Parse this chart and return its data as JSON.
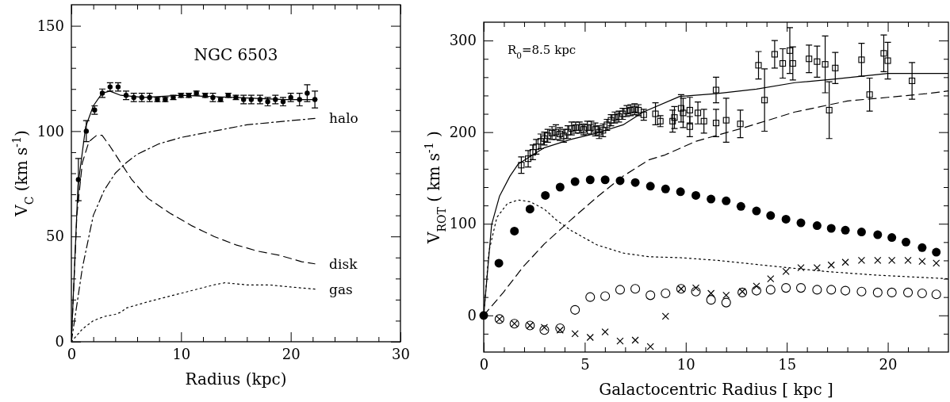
{
  "chart_data": [
    {
      "type": "line",
      "title": "NGC 6503",
      "xlabel": "Radius (kpc)",
      "ylabel": "V$_{C}$ (km s$^{-1}$)",
      "xlim": [
        0,
        30
      ],
      "ylim": [
        0,
        160
      ],
      "xticks": [
        0,
        {
          "value": 2,
          "label": null
        },
        {
          "value": 4,
          "label": null
        },
        {
          "value": 6,
          "label": null
        },
        {
          "value": 8,
          "label": null
        },
        10,
        {
          "value": 12,
          "label": null
        },
        {
          "value": 14,
          "label": null
        },
        {
          "value": 16,
          "label": null
        },
        {
          "value": 18,
          "label": null
        },
        20,
        {
          "value": 22,
          "label": null
        },
        {
          "value": 24,
          "label": null
        },
        {
          "value": 26,
          "label": null
        },
        {
          "value": 28,
          "label": null
        },
        30
      ],
      "yticks": [
        0,
        {
          "value": 10,
          "label": null
        },
        {
          "value": 20,
          "label": null
        },
        {
          "value": 30,
          "label": null
        },
        {
          "value": 40,
          "label": null
        },
        50,
        {
          "value": 60,
          "label": null
        },
        {
          "value": 70,
          "label": null
        },
        {
          "value": 80,
          "label": null
        },
        {
          "value": 90,
          "label": null
        },
        100,
        {
          "value": 110,
          "label": null
        },
        {
          "value": 120,
          "label": null
        },
        {
          "value": 130,
          "label": null
        },
        {
          "value": 140,
          "label": null
        },
        150
      ],
      "grid": false,
      "legend": false,
      "series": [
        {
          "type": "line",
          "color": "#000000",
          "line_style": "solid",
          "x": [
            0,
            0.6,
            1.3,
            2,
            2.8,
            3.5,
            4.5,
            6.6,
            10,
            14.8,
            19.5,
            22.4
          ],
          "values": [
            0,
            74,
            102,
            112,
            118,
            119,
            117,
            116,
            117,
            116,
            115,
            115
          ]
        },
        {
          "type": "line",
          "name": "halo",
          "color": "#000000",
          "line_style": "dashdot",
          "x": [
            0,
            1,
            2,
            3,
            4,
            5,
            6,
            8,
            10,
            12,
            14,
            16,
            18,
            20,
            22.2
          ],
          "values": [
            0,
            35,
            60,
            72,
            80,
            85,
            89,
            94,
            97,
            99,
            101,
            103,
            104,
            105,
            106
          ]
        },
        {
          "type": "line",
          "name": "disk",
          "color": "#000000",
          "line_style": "dashed",
          "x": [
            0,
            0.5,
            1,
            1.6,
            2.3,
            2.8,
            3.5,
            4.5,
            5.5,
            7,
            9,
            11,
            13,
            15,
            17,
            19,
            21,
            22.2
          ],
          "values": [
            0,
            60,
            85,
            95,
            98,
            98,
            93,
            85,
            77,
            68,
            61,
            55,
            50,
            46,
            43,
            41,
            38,
            37
          ]
        },
        {
          "type": "line",
          "name": "gas",
          "color": "#000000",
          "line_style": "dotted",
          "x": [
            0,
            1,
            2,
            3,
            4,
            4.5,
            5,
            7,
            10,
            13,
            14,
            16,
            18,
            20,
            22.2
          ],
          "values": [
            0,
            6,
            10,
            12,
            13,
            14,
            16,
            19,
            23,
            27,
            28,
            27,
            27,
            26,
            25
          ]
        },
        {
          "type": "scatter",
          "color": "#000000",
          "marker": "circle",
          "x": [
            0.64,
            1.36,
            2.12,
            2.82,
            3.53,
            4.26,
            4.99,
            5.69,
            6.42,
            7.13,
            7.84,
            8.56,
            9.29,
            10,
            10.7,
            11.4,
            12.2,
            12.9,
            13.6,
            14.3,
            15,
            15.7,
            16.4,
            17.2,
            17.9,
            18.6,
            19.3,
            20,
            20.8,
            21.5,
            22.2
          ],
          "values": [
            77,
            100,
            110,
            118,
            121,
            121,
            117,
            116,
            116,
            116,
            115,
            115,
            116,
            117,
            117,
            118,
            117,
            116,
            115,
            117,
            116,
            115,
            115,
            115,
            114,
            115,
            114,
            116,
            115,
            118,
            115
          ],
          "errors": [
            10,
            5,
            2,
            2,
            2,
            2,
            2,
            2,
            2,
            2,
            1,
            1,
            1,
            1,
            1,
            1,
            1,
            2,
            1,
            1,
            1,
            2,
            2,
            2,
            2,
            2,
            2,
            2,
            3,
            4,
            4
          ]
        }
      ]
    },
    {
      "type": "line",
      "xlabel": "Galactocentric Radius [ kpc ]",
      "ylabel": "V$_{ROT}$ ( km s$^{-1}$ )",
      "annotations": [
        "R$_{0}$=8.5 kpc"
      ],
      "xlim": [
        0,
        23
      ],
      "ylim": [
        -40,
        320
      ],
      "xticks": [
        0,
        {
          "value": 1,
          "label": null
        },
        {
          "value": 2,
          "label": null
        },
        {
          "value": 3,
          "label": null
        },
        {
          "value": 4,
          "label": null
        },
        5,
        {
          "value": 6,
          "label": null
        },
        {
          "value": 7,
          "label": null
        },
        {
          "value": 8,
          "label": null
        },
        {
          "value": 9,
          "label": null
        },
        10,
        {
          "value": 11,
          "label": null
        },
        {
          "value": 12,
          "label": null
        },
        {
          "value": 13,
          "label": null
        },
        {
          "value": 14,
          "label": null
        },
        15,
        {
          "value": 16,
          "label": null
        },
        {
          "value": 17,
          "label": null
        },
        {
          "value": 18,
          "label": null
        },
        {
          "value": 19,
          "label": null
        },
        20,
        {
          "value": 21,
          "label": null
        },
        {
          "value": 22,
          "label": null
        }
      ],
      "yticks": [
        {
          "value": -20,
          "label": null
        },
        0,
        {
          "value": 20,
          "label": null
        },
        {
          "value": 40,
          "label": null
        },
        {
          "value": 60,
          "label": null
        },
        {
          "value": 80,
          "label": null
        },
        100,
        {
          "value": 120,
          "label": null
        },
        {
          "value": 140,
          "label": null
        },
        {
          "value": 160,
          "label": null
        },
        {
          "value": 180,
          "label": null
        },
        200,
        {
          "value": 220,
          "label": null
        },
        {
          "value": 240,
          "label": null
        },
        {
          "value": 260,
          "label": null
        },
        {
          "value": 280,
          "label": null
        },
        300
      ],
      "grid": false,
      "legend": false,
      "series": [
        {
          "type": "line",
          "color": "#000000",
          "line_style": "solid",
          "x": [
            0,
            0.39,
            0.78,
            1.3,
            1.7,
            3,
            4.3,
            5.6,
            6.9,
            7.9,
            9.7,
            11.5,
            13.5,
            15.4,
            17.4,
            18.7,
            20,
            21.4,
            23
          ],
          "values": [
            0,
            99,
            130,
            152,
            165,
            183,
            192,
            199,
            208,
            222,
            239,
            242,
            247,
            254,
            258,
            261,
            264,
            264,
            264
          ]
        },
        {
          "type": "line",
          "color": "#000000",
          "line_style": "dashed",
          "x": [
            0,
            0.97,
            1.95,
            3,
            4.3,
            5.6,
            6.9,
            8.2,
            8.96,
            10.5,
            12.9,
            15.4,
            18,
            20,
            21.9,
            23
          ],
          "values": [
            0,
            25,
            53,
            78,
            104,
            129,
            152,
            170,
            175,
            190,
            205,
            222,
            234,
            238,
            242,
            245
          ]
        },
        {
          "type": "line",
          "color": "#000000",
          "line_style": "dotted",
          "x": [
            0,
            0.26,
            0.65,
            1.17,
            1.7,
            2.3,
            3,
            3.6,
            4.3,
            5.6,
            6.9,
            8.2,
            9.74,
            11.6,
            14.2,
            16.9,
            19.4,
            23
          ],
          "values": [
            0,
            70,
            107,
            122,
            126,
            124,
            116,
            104,
            93,
            77,
            68,
            64,
            63,
            60,
            54,
            48,
            44,
            40
          ]
        },
        {
          "type": "scatter",
          "color": "#000000",
          "marker": "circle",
          "x": [
            0,
            0.75,
            1.52,
            2.29,
            3.05,
            3.78,
            4.52,
            5.27,
            6.01,
            6.75,
            7.5,
            8.25,
            9.0,
            9.74,
            10.5,
            11.25,
            12.0,
            12.73,
            13.5,
            14.2,
            14.96,
            15.7,
            16.5,
            17.2,
            17.9,
            18.7,
            19.5,
            20.2,
            20.9,
            21.7,
            22.4
          ],
          "values": [
            0,
            57,
            92,
            116,
            131,
            140,
            146,
            148,
            148,
            147,
            145,
            141,
            138,
            135,
            131,
            127,
            125,
            119,
            114,
            109,
            105,
            101,
            98,
            95,
            93,
            91,
            88,
            85,
            80,
            74,
            69
          ]
        },
        {
          "type": "scatter",
          "color": "#000000",
          "marker": "circle-open",
          "x": [
            0.78,
            1.52,
            2.29,
            3.0,
            3.78,
            4.52,
            5.27,
            6.01,
            6.75,
            7.5,
            8.25,
            9.0,
            9.77,
            10.5,
            11.25,
            12.0,
            12.8,
            13.5,
            14.2,
            14.96,
            15.7,
            16.5,
            17.2,
            17.9,
            18.7,
            19.5,
            20.2,
            21.0,
            21.7,
            22.4
          ],
          "values": [
            -4,
            -9,
            -11,
            -16,
            -14,
            6,
            20,
            21,
            28,
            29,
            22,
            24,
            29,
            26,
            17,
            14,
            25,
            27,
            28,
            30,
            30,
            28,
            28,
            27,
            26,
            25,
            25,
            25,
            24,
            23
          ]
        },
        {
          "type": "scatter",
          "color": "#000000",
          "marker": "cross",
          "x": [
            0.78,
            1.52,
            2.29,
            3.0,
            3.78,
            4.52,
            5.27,
            6.01,
            6.75,
            7.5,
            8.25,
            9.0,
            9.77,
            10.5,
            11.25,
            12.0,
            12.8,
            13.5,
            14.2,
            14.96,
            15.7,
            16.5,
            17.2,
            17.9,
            18.7,
            19.5,
            20.2,
            21.0,
            21.7,
            22.4
          ],
          "values": [
            -4,
            -9,
            -11,
            -13,
            -16,
            -20,
            -24,
            -18,
            -28,
            -27,
            -34,
            -1,
            29,
            30,
            24,
            22,
            26,
            32,
            40,
            48,
            52,
            52,
            55,
            58,
            60,
            60,
            60,
            60,
            59,
            57
          ]
        },
        {
          "type": "scatter",
          "color": "#000000",
          "marker": "square",
          "x": [
            1.86,
            2.2,
            2.43,
            2.6,
            2.82,
            3.0,
            3.17,
            3.38,
            3.57,
            3.77,
            3.96,
            4.16,
            4.35,
            4.55,
            4.74,
            4.94,
            5.13,
            5.32,
            5.52,
            5.71,
            5.9,
            6.1,
            6.3,
            6.49,
            6.69,
            6.88,
            7.08,
            7.27,
            7.47,
            7.66,
            7.92,
            8.5,
            8.74,
            9.35,
            9.44,
            9.77,
            9.87,
            10.2,
            10.2,
            10.6,
            10.9,
            11.5,
            11.5,
            12.0,
            12.7,
            13.6,
            13.9,
            14.4,
            14.8,
            15.15,
            15.3,
            16.1,
            16.5,
            16.9,
            17.1,
            17.4,
            18.7,
            19.1,
            19.8,
            20.0,
            21.2
          ],
          "values": [
            164,
            171,
            178,
            184,
            190,
            193,
            196,
            199,
            200,
            198,
            196,
            200,
            204,
            205,
            205,
            203,
            205,
            205,
            203,
            200,
            202,
            208,
            213,
            216,
            217,
            220,
            223,
            224,
            225,
            224,
            219,
            220,
            212,
            212,
            216,
            226,
            221,
            224,
            206,
            221,
            212,
            246,
            210,
            213,
            209,
            273,
            235,
            285,
            275,
            289,
            275,
            280,
            277,
            274,
            224,
            270,
            279,
            241,
            286,
            278,
            256
          ],
          "errors": [
            9,
            9,
            8,
            8,
            8,
            7,
            7,
            7,
            8,
            7,
            7,
            7,
            7,
            6,
            6,
            6,
            7,
            7,
            7,
            7,
            7,
            6,
            6,
            6,
            6,
            6,
            6,
            6,
            6,
            6,
            6,
            12,
            6,
            12,
            12,
            15,
            16,
            14,
            11,
            12,
            13,
            14,
            15,
            24,
            15,
            15,
            34,
            15,
            16,
            25,
            18,
            15,
            17,
            31,
            31,
            17,
            18,
            18,
            20,
            20,
            20
          ]
        }
      ]
    }
  ]
}
